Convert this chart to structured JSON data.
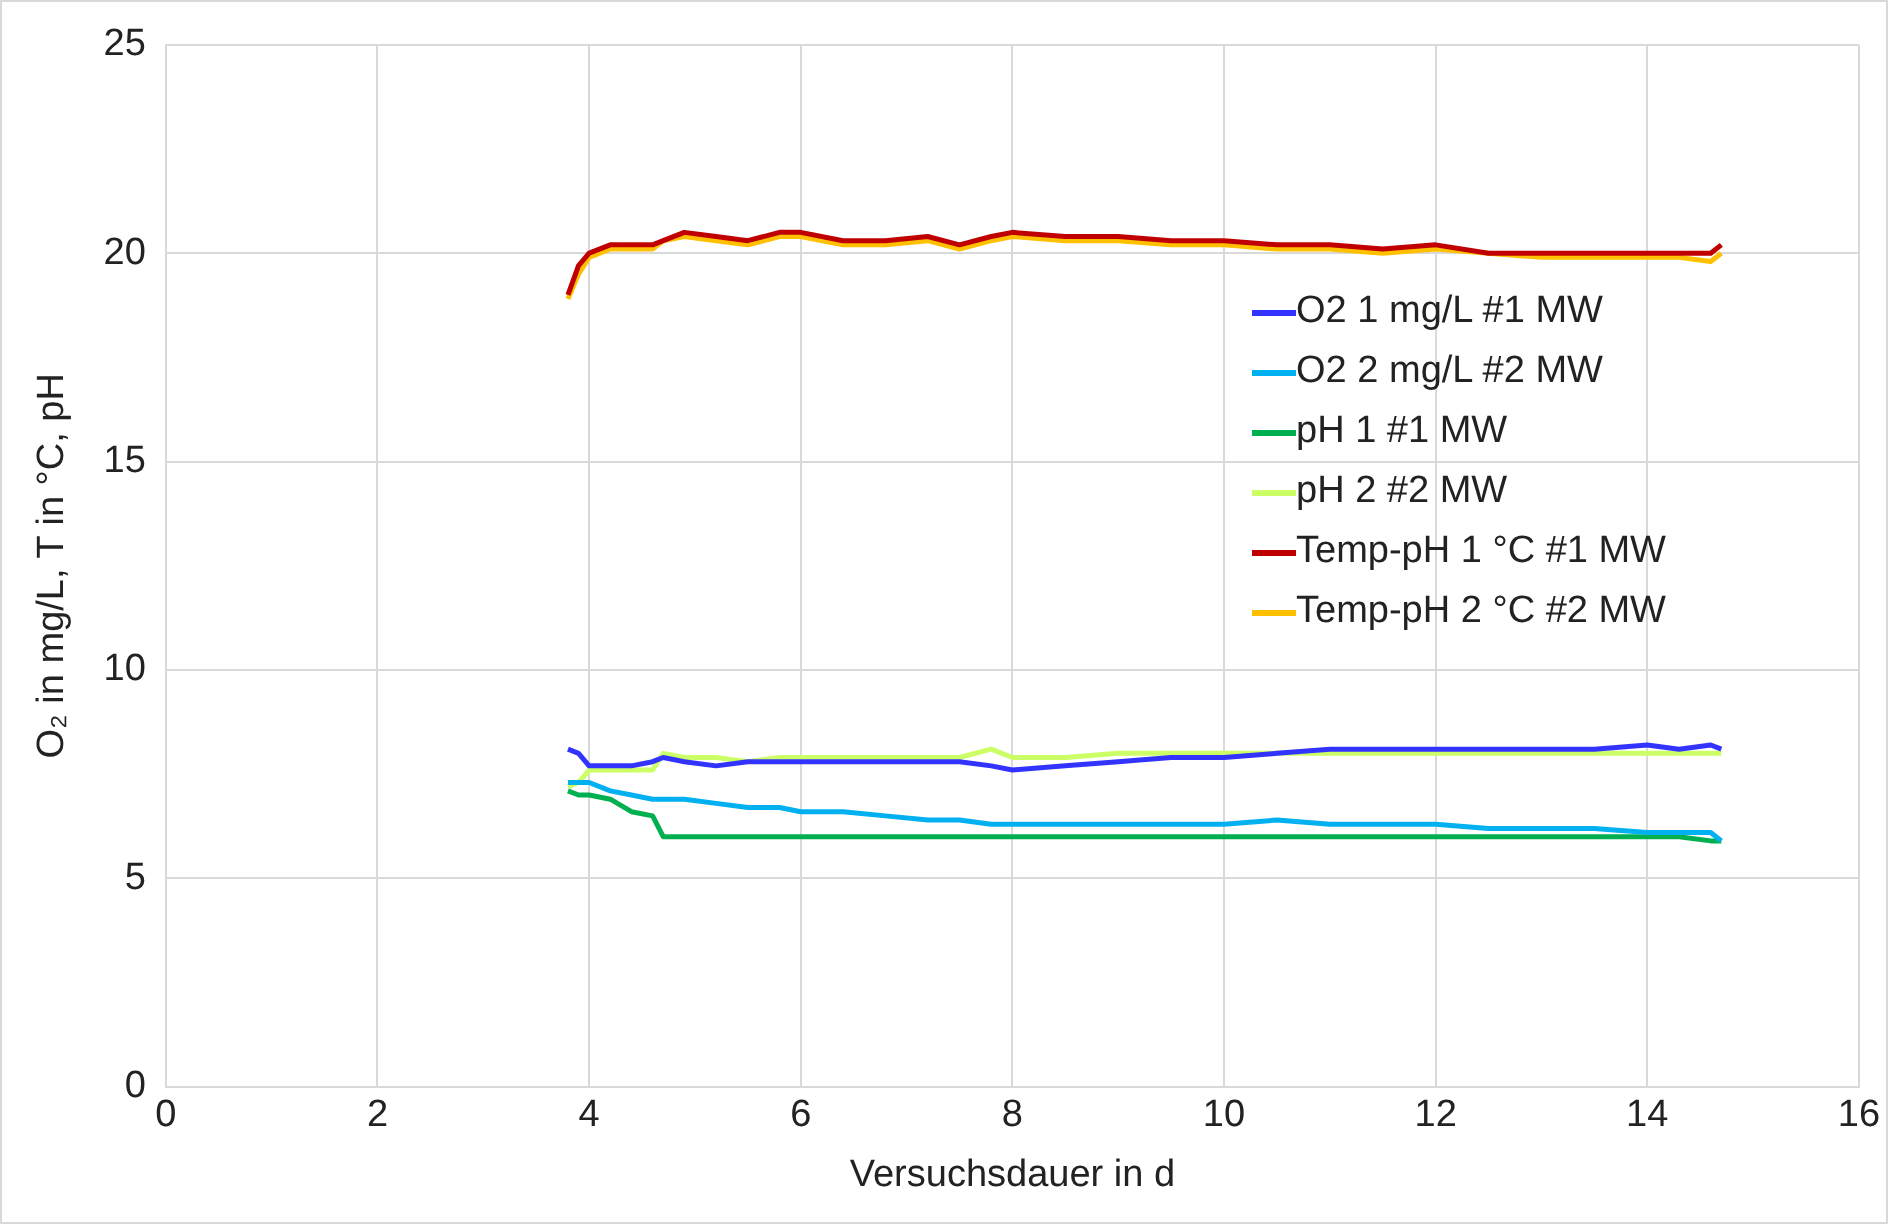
{
  "chart_data": {
    "type": "line",
    "xlabel": "Versuchsdauer in d",
    "ylabel": "O₂ in mg/L, T in °C, pH",
    "xlim": [
      0,
      16
    ],
    "xticks": [
      0,
      2,
      4,
      6,
      8,
      10,
      12,
      14,
      16
    ],
    "ylim": [
      0,
      25
    ],
    "yticks": [
      0,
      5,
      10,
      15,
      20,
      25
    ],
    "grid": true,
    "legend": "right",
    "marker": "none",
    "line_style": "solid",
    "x": [
      3.8,
      3.9,
      4.0,
      4.2,
      4.4,
      4.6,
      4.7,
      4.9,
      5.2,
      5.5,
      5.8,
      6.0,
      6.4,
      6.8,
      7.2,
      7.5,
      7.8,
      8.0,
      8.5,
      9.0,
      9.5,
      10.0,
      10.5,
      11.0,
      11.5,
      12.0,
      12.5,
      13.0,
      13.5,
      14.0,
      14.3,
      14.6,
      14.7
    ],
    "series": [
      {
        "name": "O2 1 mg/L #1 MW",
        "color": "#3333ff",
        "values": [
          8.1,
          8.0,
          7.7,
          7.7,
          7.7,
          7.8,
          7.9,
          7.8,
          7.7,
          7.8,
          7.8,
          7.8,
          7.8,
          7.8,
          7.8,
          7.8,
          7.7,
          7.6,
          7.7,
          7.8,
          7.9,
          7.9,
          8.0,
          8.1,
          8.1,
          8.1,
          8.1,
          8.1,
          8.1,
          8.2,
          8.1,
          8.2,
          8.1
        ]
      },
      {
        "name": "O2 2 mg/L #2 MW",
        "color": "#00b0f0",
        "values": [
          7.3,
          7.3,
          7.3,
          7.1,
          7.0,
          6.9,
          6.9,
          6.9,
          6.8,
          6.7,
          6.7,
          6.6,
          6.6,
          6.5,
          6.4,
          6.4,
          6.3,
          6.3,
          6.3,
          6.3,
          6.3,
          6.3,
          6.4,
          6.3,
          6.3,
          6.3,
          6.2,
          6.2,
          6.2,
          6.1,
          6.1,
          6.1,
          5.9
        ]
      },
      {
        "name": "pH 1 #1 MW",
        "color": "#00b050",
        "values": [
          7.1,
          7.0,
          7.0,
          6.9,
          6.6,
          6.5,
          6.0,
          6.0,
          6.0,
          6.0,
          6.0,
          6.0,
          6.0,
          6.0,
          6.0,
          6.0,
          6.0,
          6.0,
          6.0,
          6.0,
          6.0,
          6.0,
          6.0,
          6.0,
          6.0,
          6.0,
          6.0,
          6.0,
          6.0,
          6.0,
          6.0,
          5.9,
          5.9
        ]
      },
      {
        "name": "pH 2 #2 MW",
        "color": "#ccff66",
        "values": [
          7.2,
          7.3,
          7.6,
          7.6,
          7.6,
          7.6,
          8.0,
          7.9,
          7.9,
          7.8,
          7.9,
          7.9,
          7.9,
          7.9,
          7.9,
          7.9,
          8.1,
          7.9,
          7.9,
          8.0,
          8.0,
          8.0,
          8.0,
          8.0,
          8.0,
          8.0,
          8.0,
          8.0,
          8.0,
          8.0,
          8.0,
          8.0,
          8.0
        ]
      },
      {
        "name": "Temp-pH 1 °C #1 MW",
        "color": "#c00000",
        "values": [
          19.0,
          19.7,
          20.0,
          20.2,
          20.2,
          20.2,
          20.3,
          20.5,
          20.4,
          20.3,
          20.5,
          20.5,
          20.3,
          20.3,
          20.4,
          20.2,
          20.4,
          20.5,
          20.4,
          20.4,
          20.3,
          20.3,
          20.2,
          20.2,
          20.1,
          20.2,
          20.0,
          20.0,
          20.0,
          20.0,
          20.0,
          20.0,
          20.2
        ]
      },
      {
        "name": "Temp-pH 2 °C #2 MW",
        "color": "#ffc000",
        "values": [
          18.9,
          19.5,
          19.9,
          20.1,
          20.1,
          20.1,
          20.3,
          20.4,
          20.3,
          20.2,
          20.4,
          20.4,
          20.2,
          20.2,
          20.3,
          20.1,
          20.3,
          20.4,
          20.3,
          20.3,
          20.2,
          20.2,
          20.1,
          20.1,
          20.0,
          20.1,
          20.0,
          19.9,
          19.9,
          19.9,
          19.9,
          19.8,
          20.0
        ]
      }
    ]
  }
}
